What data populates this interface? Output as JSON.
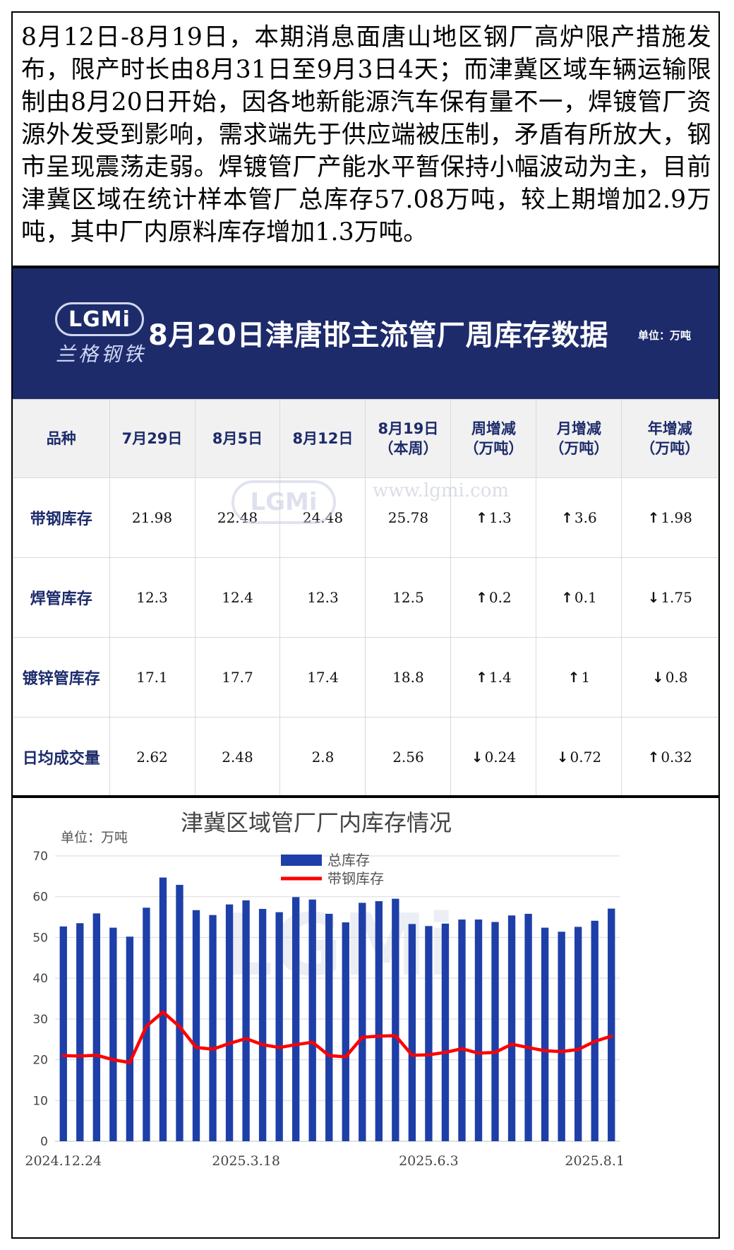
{
  "intro_text": "8月12日-8月19日，本期消息面唐山地区钢厂高炉限产措施发布，限产时长由8月31日至9月3日4天；而津冀区域车辆运输限制由8月20日开始，因各地新能源汽车保有量不一，焊镀管厂资源外发受到影响，需求端先于供应端被压制，矛盾有所放大，钢市呈现震荡走弱。焊镀管厂产能水平暂保持小幅波动为主，目前津冀区域在统计样本管厂总库存57.08万吨，较上期增加2.9万吨，其中厂内原料库存增加1.3万吨。",
  "banner": {
    "logo_text": "LGMi",
    "logo_cn": "兰格钢铁",
    "title": "8月20日津唐邯主流管厂周库存数据",
    "unit": "单位：万吨"
  },
  "watermark": {
    "logo": "LGMi",
    "url": "www.lgmi.com"
  },
  "table": {
    "headers": [
      [
        "品种"
      ],
      [
        "7月29日"
      ],
      [
        "8月5日"
      ],
      [
        "8月12日"
      ],
      [
        "8月19日",
        "（本周）"
      ],
      [
        "周增减",
        "（万吨）"
      ],
      [
        "月增减",
        "（万吨）"
      ],
      [
        "年增减",
        "（万吨）"
      ]
    ],
    "rows": [
      {
        "label": "带钢库存",
        "values": [
          "21.98",
          "22.48",
          "24.48",
          "25.78"
        ],
        "changes": [
          {
            "dir": "up",
            "value": "1.3"
          },
          {
            "dir": "up",
            "value": "3.6"
          },
          {
            "dir": "up",
            "value": "1.98"
          }
        ]
      },
      {
        "label": "焊管库存",
        "values": [
          "12.3",
          "12.4",
          "12.3",
          "12.5"
        ],
        "changes": [
          {
            "dir": "up",
            "value": "0.2"
          },
          {
            "dir": "up",
            "value": "0.1"
          },
          {
            "dir": "down",
            "value": "1.75"
          }
        ]
      },
      {
        "label": "镀锌管库存",
        "values": [
          "17.1",
          "17.7",
          "17.4",
          "18.8"
        ],
        "changes": [
          {
            "dir": "up",
            "value": "1.4"
          },
          {
            "dir": "up",
            "value": "1"
          },
          {
            "dir": "down",
            "value": "0.8"
          }
        ]
      },
      {
        "label": "日均成交量",
        "values": [
          "2.62",
          "2.48",
          "2.8",
          "2.56"
        ],
        "changes": [
          {
            "dir": "down",
            "value": "0.24"
          },
          {
            "dir": "down",
            "value": "0.72"
          },
          {
            "dir": "up",
            "value": "0.32"
          }
        ]
      }
    ]
  },
  "colors": {
    "up": "#e8101a",
    "down": "#15a04a",
    "navy": "#1d2b6b",
    "bar": "#1e3fa8",
    "line": "#ff0000"
  },
  "chart_data": {
    "type": "bar",
    "title": "津冀区域管厂厂内库存情况",
    "unit_label": "单位：万吨",
    "ylim": [
      0,
      70
    ],
    "yticks": [
      0,
      10,
      20,
      30,
      40,
      50,
      60,
      70
    ],
    "grid": true,
    "legend_position": "top-center",
    "x_tick_labels": [
      {
        "index": 0,
        "label": "2024.12.24"
      },
      {
        "index": 11,
        "label": "2025.3.18"
      },
      {
        "index": 22,
        "label": "2025.6.3"
      },
      {
        "index": 32,
        "label": "2025.8.1"
      }
    ],
    "series": [
      {
        "name": "总库存",
        "type": "bar",
        "values": [
          52.7,
          53.5,
          55.9,
          52.4,
          50.2,
          57.3,
          64.7,
          62.9,
          56.7,
          55.5,
          58.1,
          59.1,
          57.0,
          56.2,
          59.9,
          59.3,
          55.8,
          53.7,
          58.5,
          58.9,
          59.5,
          53.3,
          52.8,
          53.4,
          54.4,
          54.4,
          53.8,
          55.4,
          55.8,
          52.4,
          51.4,
          52.6,
          54.1,
          57.08
        ]
      },
      {
        "name": "带钢库存",
        "type": "line",
        "values": [
          21.0,
          20.9,
          21.1,
          20.0,
          19.3,
          28.2,
          31.7,
          28.1,
          23.0,
          22.6,
          24.0,
          25.2,
          23.7,
          23.0,
          23.7,
          24.3,
          21.0,
          20.7,
          25.5,
          25.8,
          25.9,
          21.1,
          21.2,
          21.8,
          22.7,
          21.6,
          21.8,
          23.8,
          23.0,
          22.2,
          22.0,
          22.5,
          24.5,
          25.78
        ]
      }
    ]
  }
}
